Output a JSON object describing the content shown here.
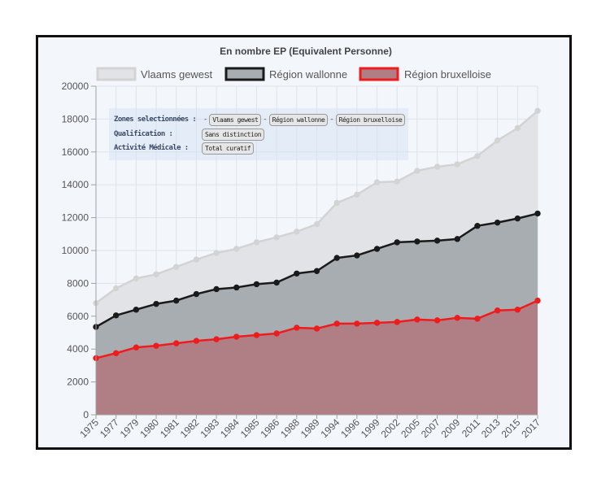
{
  "chart_data": {
    "type": "area",
    "title": "En nombre EP (Equivalent Personne)",
    "x": [
      "1975",
      "1977",
      "1979",
      "1980",
      "1981",
      "1982",
      "1983",
      "1984",
      "1985",
      "1986",
      "1988",
      "1989",
      "1994",
      "1996",
      "1999",
      "2002",
      "2005",
      "2007",
      "2009",
      "2011",
      "2013",
      "2015",
      "2017"
    ],
    "ylim": [
      0,
      20000
    ],
    "yticks": [
      0,
      2000,
      4000,
      6000,
      8000,
      10000,
      12000,
      14000,
      16000,
      18000,
      20000
    ],
    "stacked": false,
    "grid": true,
    "legend_position": "top",
    "series": [
      {
        "name": "Vlaams gewest",
        "color": "#d3d3d3",
        "fill": "#e1e3e6",
        "values": [
          6800,
          7700,
          8300,
          8550,
          9000,
          9450,
          9850,
          10100,
          10500,
          10800,
          11150,
          11600,
          12900,
          13400,
          14150,
          14200,
          14850,
          15100,
          15250,
          15750,
          16700,
          17450,
          18500
        ]
      },
      {
        "name": "Région wallonne",
        "color": "#1a1a1a",
        "fill": "#a8adb1",
        "values": [
          5350,
          6050,
          6400,
          6750,
          6950,
          7350,
          7650,
          7750,
          7950,
          8050,
          8600,
          8750,
          9550,
          9700,
          10100,
          10500,
          10550,
          10600,
          10700,
          11500,
          11700,
          11950,
          12250
        ]
      },
      {
        "name": "Région bruxelloise",
        "color": "#ee1c1c",
        "fill": "#b07f86",
        "values": [
          3450,
          3750,
          4100,
          4200,
          4350,
          4500,
          4600,
          4750,
          4850,
          4950,
          5300,
          5250,
          5550,
          5550,
          5600,
          5650,
          5800,
          5750,
          5900,
          5850,
          6350,
          6400,
          6950
        ]
      }
    ]
  },
  "filters": {
    "zones": {
      "label": "Zones selectionnées :",
      "chips": [
        "Vlaams gewest",
        "Région wallonne",
        "Région bruxelloise"
      ]
    },
    "qualification": {
      "label": "Qualification :",
      "chip": "Sans distinction"
    },
    "activite": {
      "label": "Activité Médicale :",
      "chip": "Total curatif"
    },
    "separator": "-"
  }
}
